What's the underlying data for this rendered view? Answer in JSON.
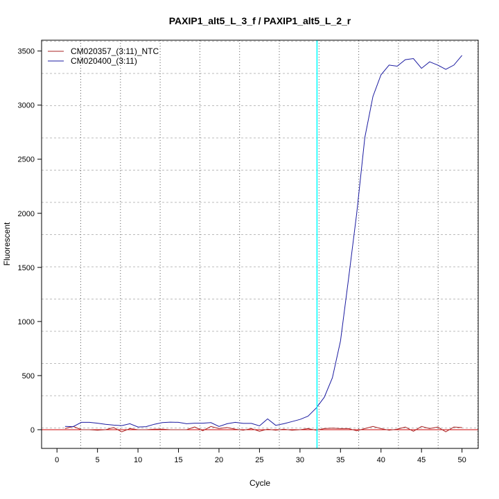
{
  "chart_data": {
    "type": "line",
    "title": "PAXIP1_alt5_L_3_f / PAXIP1_alt5_L_2_r",
    "xlabel": "Cycle",
    "ylabel": "Fluorescent",
    "xlim": [
      -1.9,
      52
    ],
    "ylim": [
      -173,
      3600
    ],
    "xticks": [
      0,
      5,
      10,
      15,
      20,
      25,
      30,
      35,
      40,
      45,
      50
    ],
    "yticks": [
      0,
      500,
      1000,
      1500,
      2000,
      2500,
      3000,
      3500
    ],
    "grid": true,
    "legend_position": "top-left",
    "threshold_cycle_line": 32.1,
    "threshold_color": "#00ffff",
    "baseline_value": 0,
    "baseline_color": "#cc0000",
    "x": [
      1,
      2,
      3,
      4,
      5,
      6,
      7,
      8,
      9,
      10,
      11,
      12,
      13,
      14,
      15,
      16,
      17,
      18,
      19,
      20,
      21,
      22,
      23,
      24,
      25,
      26,
      27,
      28,
      29,
      30,
      31,
      32,
      33,
      34,
      35,
      36,
      37,
      38,
      39,
      40,
      41,
      42,
      43,
      44,
      45,
      46,
      47,
      48,
      49,
      50
    ],
    "series": [
      {
        "name": "CM020357_(3:11)_NTC",
        "color": "#aa2222",
        "values": [
          10,
          30,
          0,
          0,
          -5,
          0,
          20,
          -20,
          10,
          0,
          0,
          5,
          5,
          0,
          0,
          0,
          25,
          -10,
          30,
          10,
          20,
          5,
          -5,
          10,
          -15,
          5,
          -5,
          5,
          -5,
          0,
          10,
          -5,
          10,
          15,
          10,
          10,
          -10,
          10,
          30,
          10,
          -5,
          5,
          25,
          -15,
          30,
          10,
          25,
          -20,
          25,
          20
        ]
      },
      {
        "name": "CM020400_(3:11)",
        "color": "#1a1aa0",
        "values": [
          30,
          28,
          68,
          68,
          60,
          50,
          42,
          38,
          55,
          25,
          28,
          50,
          65,
          70,
          68,
          55,
          60,
          60,
          65,
          30,
          55,
          68,
          58,
          58,
          35,
          100,
          40,
          55,
          75,
          95,
          125,
          200,
          300,
          480,
          820,
          1400,
          2000,
          2700,
          3080,
          3280,
          3370,
          3360,
          3420,
          3430,
          3340,
          3400,
          3370,
          3330,
          3370,
          3460
        ]
      }
    ]
  }
}
